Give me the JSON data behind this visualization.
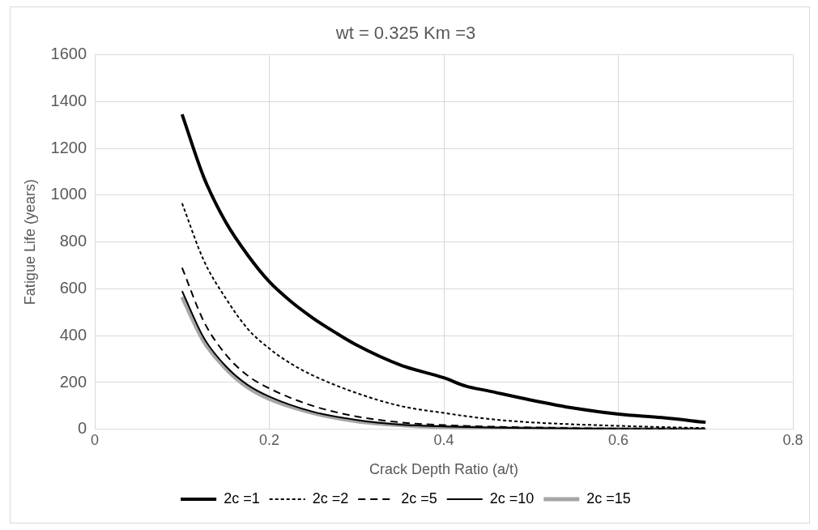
{
  "chart_data": {
    "type": "line",
    "title": "wt = 0.325 Km =3",
    "xlabel": "Crack Depth Ratio (a/t)",
    "ylabel": "Fatigue Life (years)",
    "xlim": [
      0,
      0.8
    ],
    "xticks": [
      0,
      0.2,
      0.4,
      0.6,
      0.8
    ],
    "ylim": [
      0,
      1600
    ],
    "yticks": [
      0,
      200,
      400,
      600,
      800,
      1000,
      1200,
      1400,
      1600
    ],
    "grid": true,
    "legend": "bottom",
    "marker": "none",
    "series": [
      {
        "name": "2c =1",
        "color": "#000000",
        "line_style": "solid",
        "x": [
          0.1,
          0.125,
          0.15,
          0.175,
          0.2,
          0.225,
          0.25,
          0.275,
          0.3,
          0.35,
          0.4,
          0.425,
          0.45,
          0.5,
          0.55,
          0.6,
          0.65,
          0.7
        ],
        "values": [
          1345,
          1075,
          885,
          745,
          630,
          545,
          475,
          415,
          360,
          275,
          220,
          185,
          165,
          125,
          90,
          65,
          50,
          30
        ]
      },
      {
        "name": "2c =2",
        "color": "#000000",
        "line_style": "dotted",
        "x": [
          0.1,
          0.125,
          0.15,
          0.175,
          0.2,
          0.225,
          0.25,
          0.3,
          0.35,
          0.4,
          0.45,
          0.5,
          0.6,
          0.7
        ],
        "values": [
          965,
          720,
          560,
          430,
          345,
          280,
          230,
          155,
          100,
          70,
          45,
          30,
          15,
          5
        ]
      },
      {
        "name": "2c =5",
        "color": "#000000",
        "line_style": "dashed",
        "x": [
          0.1,
          0.125,
          0.15,
          0.175,
          0.2,
          0.25,
          0.3,
          0.35,
          0.4,
          0.5,
          0.6,
          0.7
        ],
        "values": [
          690,
          460,
          320,
          230,
          175,
          100,
          55,
          30,
          18,
          8,
          3,
          1
        ]
      },
      {
        "name": "2c =10",
        "color": "#000000",
        "line_style": "solid",
        "x": [
          0.1,
          0.125,
          0.15,
          0.175,
          0.2,
          0.25,
          0.3,
          0.35,
          0.4,
          0.5,
          0.6,
          0.7
        ],
        "values": [
          590,
          390,
          270,
          190,
          140,
          75,
          40,
          20,
          12,
          5,
          2,
          0
        ]
      },
      {
        "name": "2c =15",
        "color": "#a6a6a6",
        "line_style": "solid",
        "x": [
          0.1,
          0.125,
          0.15,
          0.175,
          0.2,
          0.25,
          0.3,
          0.35,
          0.4,
          0.5,
          0.6,
          0.7
        ],
        "values": [
          565,
          375,
          260,
          180,
          130,
          70,
          35,
          18,
          10,
          4,
          1,
          0
        ]
      }
    ]
  }
}
